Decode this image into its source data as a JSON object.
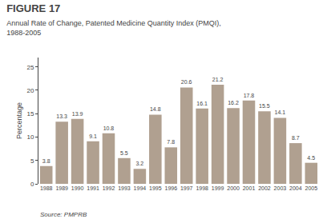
{
  "chart_data": {
    "type": "bar",
    "title": "FIGURE 17",
    "subtitle": "Annual Rate of Change, Patented Medicine Quantity Index (PMQI),\n1988-2005",
    "ylabel": "Percentage",
    "annotations": [
      "Source: PMPRB"
    ],
    "categories": [
      "1988",
      "1989",
      "1990",
      "1991",
      "1992",
      "1993",
      "1994",
      "1995",
      "1996",
      "1997",
      "1998",
      "1999",
      "2000",
      "2001",
      "2002",
      "2003",
      "2004",
      "2005"
    ],
    "values": [
      3.8,
      13.3,
      13.9,
      9.1,
      10.8,
      5.5,
      3.2,
      14.8,
      7.8,
      20.6,
      16.1,
      21.2,
      16.2,
      17.8,
      15.5,
      14.1,
      8.7,
      4.5
    ],
    "color": "#b0a090",
    "ylim": [
      0,
      27
    ],
    "yticks": [
      0,
      5,
      10,
      15,
      20,
      25
    ],
    "grid": false,
    "data_labels": true
  }
}
